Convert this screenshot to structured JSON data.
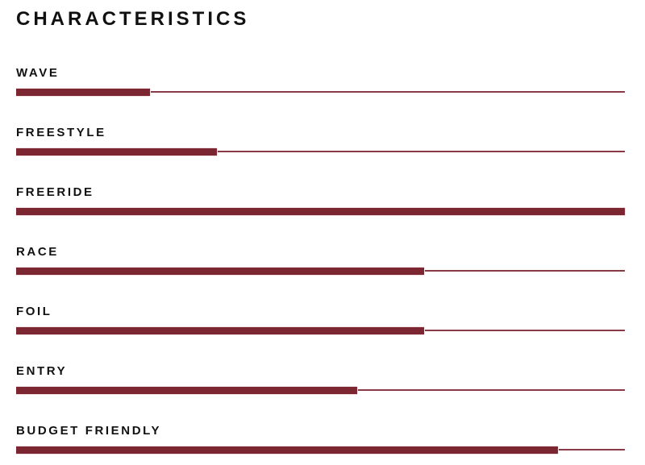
{
  "page": {
    "background": "#FFFFFF"
  },
  "header": {
    "title": "CHARACTERISTICS"
  },
  "colors": {
    "bar": "#7B2630",
    "track_line": "#7B2630",
    "bar_edge": "#F3E2E4",
    "text": "#111111"
  },
  "chart_data": {
    "type": "bar",
    "orientation": "horizontal",
    "title": "CHARACTERISTICS",
    "categories": [
      "WAVE",
      "FREESTYLE",
      "FREERIDE",
      "RACE",
      "FOIL",
      "ENTRY",
      "BUDGET FRIENDLY"
    ],
    "values": [
      22,
      33,
      100,
      67,
      67,
      56,
      89
    ],
    "value_unit": "percent",
    "xlim": [
      0,
      100
    ],
    "grid": false,
    "legend": false,
    "bar_color": "#7B2630",
    "track_style": "thin-full-width-line"
  }
}
